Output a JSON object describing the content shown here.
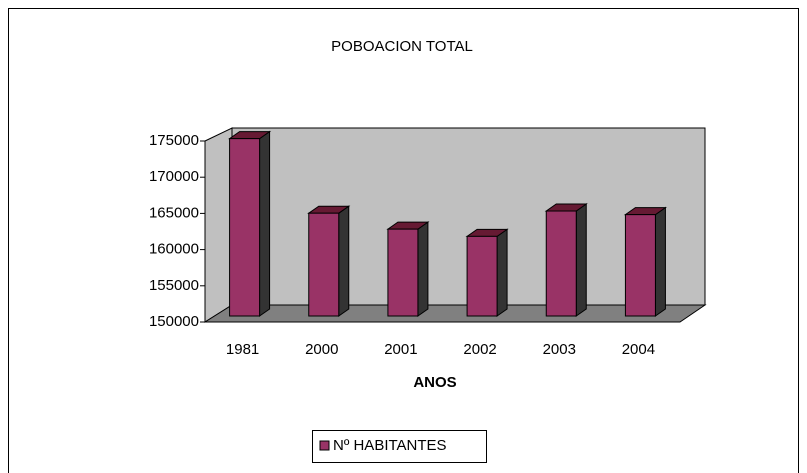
{
  "chart_data": {
    "type": "bar",
    "title": "POBOACION TOTAL",
    "x_label": "ANOS",
    "categories": [
      "1981",
      "2000",
      "2001",
      "2002",
      "2003",
      "2004"
    ],
    "series": [
      {
        "name": "Nº HABITANTES",
        "color": "#993366",
        "values": [
          174500,
          164200,
          162000,
          161000,
          164500,
          164000
        ]
      }
    ],
    "ylim": [
      150000,
      175000
    ],
    "yticks": [
      150000,
      155000,
      160000,
      165000,
      170000,
      175000
    ],
    "legend": "bottom"
  }
}
